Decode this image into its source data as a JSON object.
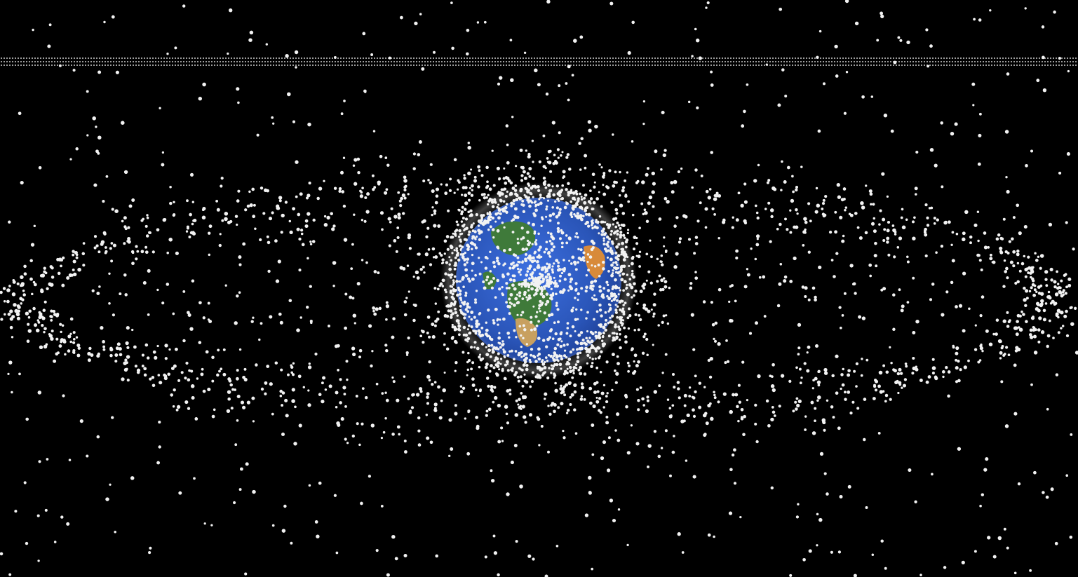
{
  "scene": {
    "subject": "earth-with-orbital-debris",
    "colors": {
      "background": "#000000",
      "debris": "#f2f2f2",
      "ocean": "#2f5fc8",
      "ocean_deep": "#1f3f9a",
      "land_green": "#3f7a3a",
      "land_tan": "#c8a060",
      "land_orange": "#d88a3a",
      "cloud": "#e8eef5"
    },
    "dotted_line": {
      "visible": true,
      "color": "#cfcfcf"
    },
    "debris_field": {
      "visible": true,
      "rings": [
        "low-earth-orbit-cloud",
        "geosynchronous-ring",
        "scattered-field"
      ]
    }
  }
}
